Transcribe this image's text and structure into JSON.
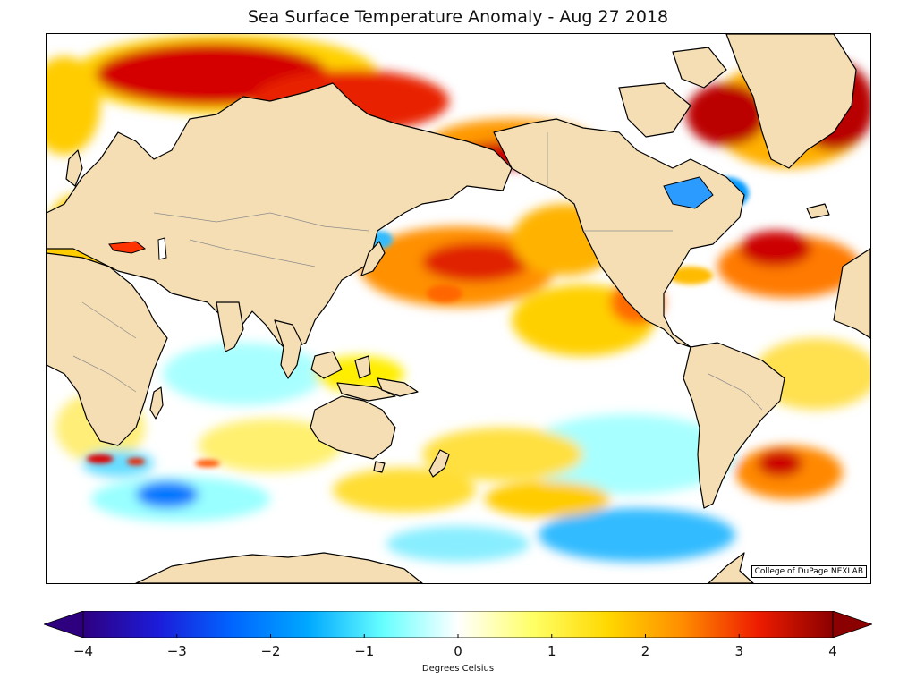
{
  "title": "Sea Surface Temperature Anomaly - Aug 27 2018",
  "credit": "College of DuPage NEXLAB",
  "colorbar": {
    "label": "Degrees Celsius",
    "min": -4,
    "max": 4,
    "ticks": [
      "−4",
      "−3",
      "−2",
      "−1",
      "0",
      "1",
      "2",
      "3",
      "4"
    ],
    "colors": [
      "#2e0080",
      "#1c1cd9",
      "#0066ff",
      "#00a8ff",
      "#66ffff",
      "#ffffff",
      "#ffff66",
      "#ffd800",
      "#ff8c00",
      "#ee1c00",
      "#8b0000"
    ]
  },
  "map": {
    "ocean_color": "#ffffff",
    "land_color": "#f5deb3",
    "coast_color": "#000000",
    "border_color": "#8c8c8c"
  }
}
